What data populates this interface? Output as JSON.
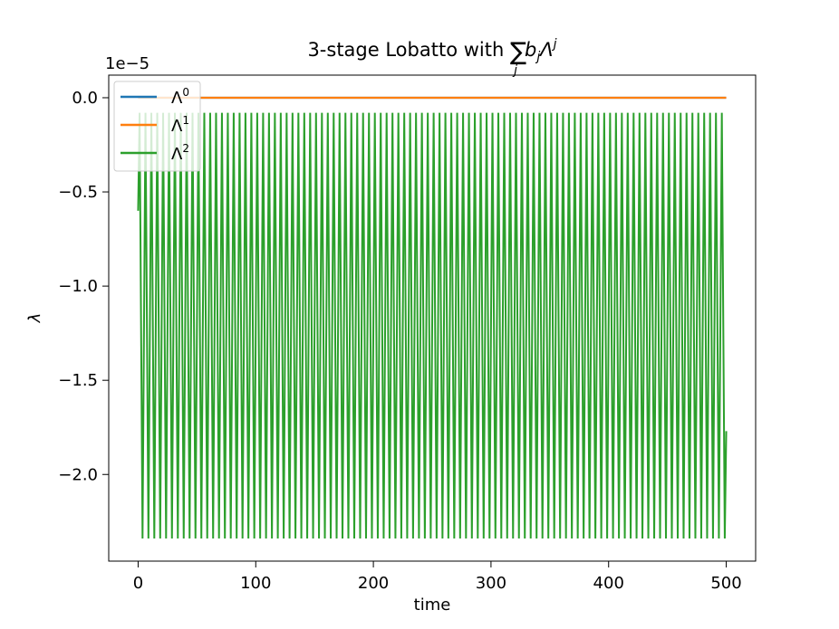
{
  "chart_data": {
    "type": "line",
    "title": {
      "prefix": "3-stage Lobatto with ",
      "sum_symbol": "∑",
      "sum_index": "j",
      "term_b": "b",
      "term_b_sub": "j",
      "term_lambda": "Λ",
      "term_lambda_sup": "j"
    },
    "xlabel": "time",
    "ylabel": "λ",
    "offset_text": "1e−5",
    "y_scale_factor": 1e-05,
    "xlim": [
      -25,
      525
    ],
    "ylim": [
      -2.46,
      0.12
    ],
    "x_ticks": [
      0,
      100,
      200,
      300,
      400,
      500
    ],
    "x_tick_labels": [
      "0",
      "100",
      "200",
      "300",
      "400",
      "500"
    ],
    "y_ticks": [
      0.0,
      -0.5,
      -1.0,
      -1.5,
      -2.0
    ],
    "y_tick_labels": [
      "0.0",
      "−0.5",
      "−1.0",
      "−1.5",
      "−2.0"
    ],
    "grid": false,
    "legend_position": "upper-left",
    "series": [
      {
        "name": "Λ",
        "name_sup": "0",
        "color": "#1f77b4",
        "kind": "constant",
        "x_start": 0,
        "x_end": 500,
        "value": 0.0
      },
      {
        "name": "Λ",
        "name_sup": "1",
        "color": "#ff7f0e",
        "kind": "constant",
        "x_start": 0,
        "x_end": 500,
        "value": 0.0
      },
      {
        "name": "Λ",
        "name_sup": "2",
        "color": "#2ca02c",
        "kind": "oscillation",
        "x_start": 0,
        "x_end": 500,
        "max": -0.08,
        "min": -2.34,
        "cycles": 100,
        "start_value": -0.6,
        "end_value": -1.77
      }
    ]
  }
}
